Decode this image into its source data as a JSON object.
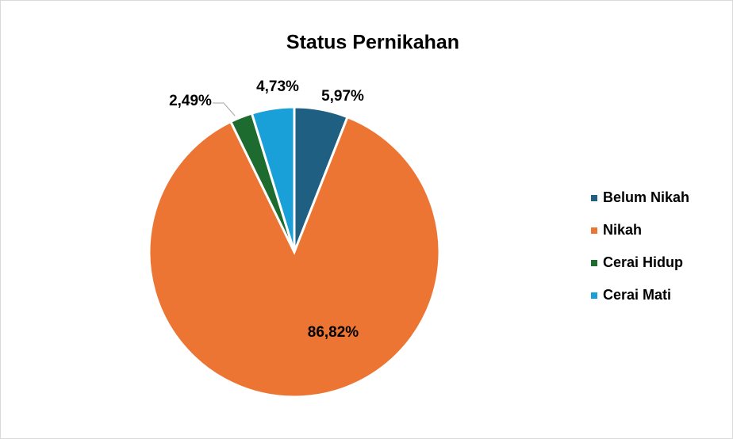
{
  "chart_data": {
    "type": "pie",
    "title": "Status Pernikahan",
    "categories": [
      "Belum Nikah",
      "Nikah",
      "Cerai Hidup",
      "Cerai Mati"
    ],
    "values": [
      5.97,
      86.82,
      2.49,
      4.73
    ],
    "value_labels": [
      "5,97%",
      "86,82%",
      "2,49%",
      "4,73%"
    ],
    "colors": [
      "#1f5f82",
      "#ed7534",
      "#1e6b30",
      "#1aa0d8"
    ],
    "legend": "right"
  }
}
